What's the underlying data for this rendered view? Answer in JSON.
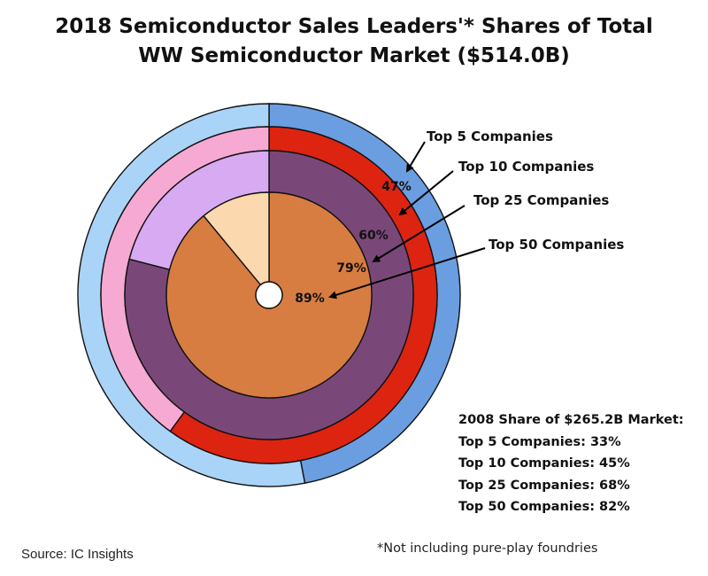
{
  "title": {
    "line1": "2018 Semiconductor Sales Leaders'* Shares of Total",
    "line2": "WW Semiconductor Market ($514.0B)"
  },
  "chart_data": {
    "type": "nested-donut",
    "rings": [
      {
        "name": "Top 5 Companies",
        "value": 47,
        "label": "47%",
        "color": "#6a9ee0",
        "rest_color": "#aad3f8"
      },
      {
        "name": "Top 10 Companies",
        "value": 60,
        "label": "60%",
        "color": "#dc2411",
        "rest_color": "#f6a9d2"
      },
      {
        "name": "Top 25 Companies",
        "value": 79,
        "label": "79%",
        "color": "#7a4878",
        "rest_color": "#d8aaf2"
      },
      {
        "name": "Top 50 Companies",
        "value": 89,
        "label": "89%",
        "color": "#d77d42",
        "rest_color": "#fbd8ad"
      }
    ]
  },
  "notes": {
    "heading": "2008 Share of $265.2B Market:",
    "items": [
      "Top 5 Companies: 33%",
      "Top 10 Companies: 45%",
      "Top 25 Companies: 68%",
      "Top 50 Companies: 82%"
    ]
  },
  "source": "Source: IC Insights",
  "footnote": "*Not including pure-play foundries"
}
